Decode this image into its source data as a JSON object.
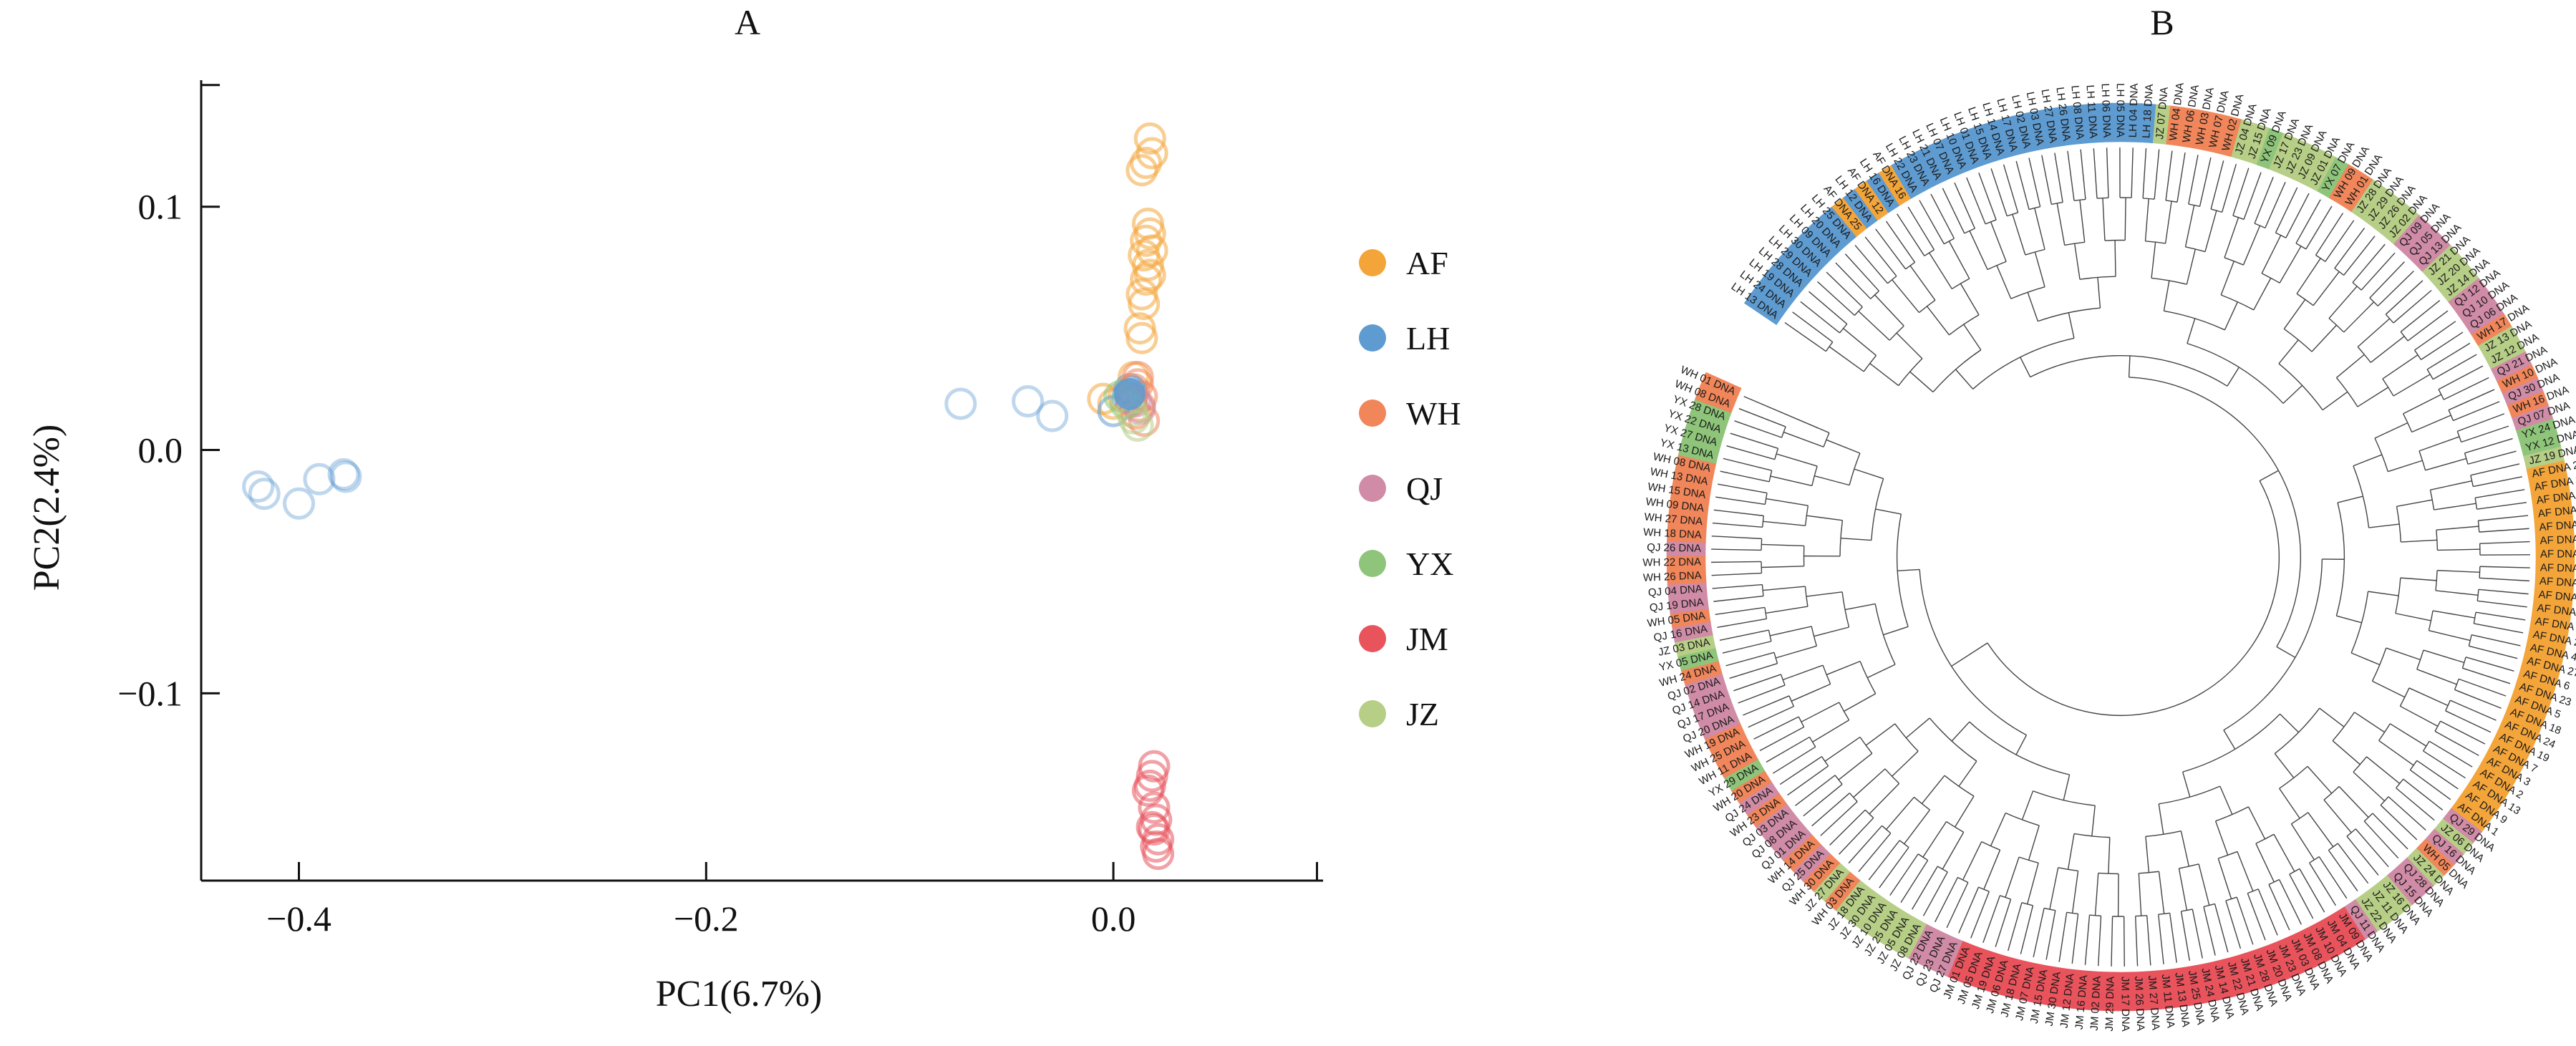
{
  "colors": {
    "AF": "#F4A53A",
    "LH": "#5E9BD1",
    "WH": "#F0865A",
    "QJ": "#D08BA6",
    "YX": "#8EC57A",
    "JM": "#E8535C",
    "JZ": "#B6CE86"
  },
  "chart_data": [
    {
      "type": "scatter",
      "title": "A",
      "xlabel": "PC1(6.7%)",
      "ylabel": "PC2(2.4%)",
      "xlim": [
        -0.448,
        0.103
      ],
      "ylim": [
        -0.177,
        0.152
      ],
      "xticks": [
        {
          "v": -0.4,
          "label": "−0.4"
        },
        {
          "v": -0.2,
          "label": "−0.2"
        },
        {
          "v": 0.0,
          "label": "0.0"
        },
        {
          "v": 0.1,
          "label": ""
        }
      ],
      "yticks": [
        {
          "v": 0.1,
          "label": "0.1"
        },
        {
          "v": 0.0,
          "label": "0.0"
        },
        {
          "v": -0.1,
          "label": "−0.1"
        },
        {
          "v": 0.15,
          "label": ""
        }
      ],
      "legend_position": "right",
      "series": [
        {
          "name": "AF",
          "points": [
            [
              0.018,
              0.128
            ],
            [
              0.019,
              0.122
            ],
            [
              0.016,
              0.118
            ],
            [
              0.014,
              0.115
            ],
            [
              0.017,
              0.093
            ],
            [
              0.018,
              0.089
            ],
            [
              0.016,
              0.086
            ],
            [
              0.019,
              0.082
            ],
            [
              0.015,
              0.08
            ],
            [
              0.017,
              0.076
            ],
            [
              0.018,
              0.072
            ],
            [
              0.016,
              0.07
            ],
            [
              0.014,
              0.064
            ],
            [
              0.015,
              0.06
            ],
            [
              0.013,
              0.05
            ],
            [
              0.014,
              0.046
            ],
            [
              -0.005,
              0.021
            ],
            [
              0.0,
              0.019
            ],
            [
              0.01,
              0.03
            ],
            [
              0.005,
              0.022
            ]
          ]
        },
        {
          "name": "LH",
          "points": [
            [
              -0.42,
              -0.015
            ],
            [
              -0.417,
              -0.018
            ],
            [
              -0.4,
              -0.022
            ],
            [
              -0.39,
              -0.012
            ],
            [
              -0.378,
              -0.01
            ],
            [
              -0.377,
              -0.011
            ],
            [
              -0.075,
              0.019
            ],
            [
              -0.042,
              0.02
            ],
            [
              -0.03,
              0.014
            ],
            [
              0.0,
              0.016
            ],
            [
              0.008,
              0.023
            ],
            [
              0.009,
              0.024
            ],
            [
              0.007,
              0.022
            ],
            [
              0.009,
              0.021
            ],
            [
              0.008,
              0.025
            ]
          ]
        },
        {
          "name": "WH",
          "points": [
            [
              0.012,
              0.03
            ],
            [
              0.01,
              0.025
            ],
            [
              0.014,
              0.022
            ],
            [
              0.013,
              0.018
            ],
            [
              0.011,
              0.015
            ],
            [
              0.015,
              0.012
            ],
            [
              0.009,
              0.02
            ],
            [
              0.012,
              0.027
            ]
          ]
        },
        {
          "name": "QJ",
          "points": [
            [
              0.011,
              0.02
            ],
            [
              0.013,
              0.017
            ]
          ]
        },
        {
          "name": "YX",
          "points": [
            [
              0.003,
              0.022
            ],
            [
              0.006,
              0.019
            ]
          ]
        },
        {
          "name": "JM",
          "points": [
            [
              0.02,
              -0.13
            ],
            [
              0.019,
              -0.134
            ],
            [
              0.018,
              -0.138
            ],
            [
              0.017,
              -0.14
            ],
            [
              0.02,
              -0.147
            ],
            [
              0.021,
              -0.152
            ],
            [
              0.02,
              -0.156
            ],
            [
              0.022,
              -0.16
            ],
            [
              0.021,
              -0.163
            ],
            [
              0.022,
              -0.166
            ],
            [
              0.019,
              -0.155
            ]
          ]
        },
        {
          "name": "JZ",
          "points": [
            [
              0.012,
              0.01
            ],
            [
              0.01,
              0.013
            ],
            [
              0.009,
              0.016
            ]
          ]
        }
      ]
    },
    {
      "type": "circular-tree",
      "title": "B",
      "leaves": [
        "LH 13 DNA",
        "LH 24 DNA",
        "LH 19 DNA",
        "LH 28 DNA",
        "LH 29 DNA",
        "LH 30 DNA",
        "LH 09 DNA",
        "LH 20 DNA",
        "LH 25 DNA",
        "AF DNA 25",
        "LH 12 DNA",
        "AF DNA 12",
        "LH 16 DNA",
        "AF DNA 16",
        "LH 22 DNA",
        "LH 23 DNA",
        "LH 21 DNA",
        "LH 07 DNA",
        "LH 10 DNA",
        "LH 01 DNA",
        "LH 15 DNA",
        "LH 14 DNA",
        "LH 17 DNA",
        "LH 02 DNA",
        "LH 03 DNA",
        "LH 27 DNA",
        "LH 26 DNA",
        "LH 08 DNA",
        "LH 11 DNA",
        "LH 06 DNA",
        "LH 05 DNA",
        "LH 04 DNA",
        "LH 18 DNA",
        "JZ 07 DNA",
        "WH 04 DNA",
        "WH 06 DNA",
        "WH 03 DNA",
        "WH 07 DNA",
        "WH 02 DNA",
        "JZ 04 DNA",
        "JZ 15 DNA",
        "YX 09 DNA",
        "JZ 17 DNA",
        "JZ 23 DNA",
        "JZ 09 DNA",
        "JZ 01 DNA",
        "YX 07 DNA",
        "WH 09 DNA",
        "WH 01 DNA",
        "JZ 28 DNA",
        "JZ 29 DNA",
        "JZ 26 DNA",
        "JZ 02 DNA",
        "QJ 09 DNA",
        "QJ 05 DNA",
        "QJ 13 DNA",
        "JZ 21 DNA",
        "JZ 20 DNA",
        "JZ 14 DNA",
        "QJ 12 DNA",
        "QJ 10 DNA",
        "QJ 06 DNA",
        "WH 17 DNA",
        "JZ 13 DNA",
        "JZ 12 DNA",
        "QJ 21 DNA",
        "WH 10 DNA",
        "QJ 30 DNA",
        "WH 16 DNA",
        "QJ 07 DNA",
        "YX 24 DNA",
        "YX 12 DNA",
        "JZ 19 DNA",
        "AF DNA 26",
        "AF DNA 8",
        "AF DNA 15",
        "AF DNA 20",
        "AF DNA 28",
        "AF DNA 29",
        "AF DNA 21",
        "AF DNA 11",
        "AF DNA 14",
        "AF DNA 10",
        "AF DNA 17",
        "AF DNA 30",
        "AF DNA 22",
        "AF DNA 4",
        "AF DNA 27",
        "AF DNA 6",
        "AF DNA 23",
        "AF DNA 5",
        "AF DNA 18",
        "AF DNA 24",
        "AF DNA 19",
        "AF DNA 7",
        "AF DNA 3",
        "AF DNA 2",
        "AF DNA 13",
        "AF DNA 9",
        "AF DNA 1",
        "QJ 29 DNA",
        "JZ 06 DNA",
        "QJ 16 DNA",
        "WH 05 DNA",
        "JZ 24 DNA",
        "QJ 28 DNA",
        "QJ 15 DNA",
        "JZ 16 DNA",
        "JZ 11 DNA",
        "JZ 22 DNA",
        "QJ 11 DNA",
        "JM 09 DNA",
        "JM 04 DNA",
        "JM 10 DNA",
        "JM 08 DNA",
        "JM 03 DNA",
        "JM 23 DNA",
        "JM 20 DNA",
        "JM 28 DNA",
        "JM 21 DNA",
        "JM 22 DNA",
        "JM 14 DNA",
        "JM 24 DNA",
        "JM 25 DNA",
        "JM 13 DNA",
        "JM 11 DNA",
        "JM 27 DNA",
        "JM 26 DNA",
        "JM 17 DNA",
        "JM 29 DNA",
        "JM 02 DNA",
        "JM 16 DNA",
        "JM 12 DNA",
        "JM 30 DNA",
        "JM 15 DNA",
        "JM 07 DNA",
        "JM 18 DNA",
        "JM 06 DNA",
        "JM 19 DNA",
        "JM 05 DNA",
        "JM 01 DNA",
        "QJ 27 DNA",
        "QJ 23 DNA",
        "QJ 22 DNA",
        "JZ 08 DNA",
        "JZ 05 DNA",
        "JZ 25 DNA",
        "JZ 10 DNA",
        "JZ 30 DNA",
        "JZ 18 DNA",
        "WH 03 DNA",
        "JZ 27 DNA",
        "WH 30 DNA",
        "QJ 25 DNA",
        "WH 14 DNA",
        "QJ 01 DNA",
        "QJ 08 DNA",
        "QJ 03 DNA",
        "WH 23 DNA",
        "QJ 24 DNA",
        "WH 20 DNA",
        "YX 29 DNA",
        "WH 11 DNA",
        "WH 25 DNA",
        "WH 19 DNA",
        "QJ 20 DNA",
        "QJ 17 DNA",
        "QJ 14 DNA",
        "QJ 02 DNA",
        "WH 24 DNA",
        "YX 05 DNA",
        "JZ 03 DNA",
        "QJ 16 DNA",
        "WH 05 DNA",
        "QJ 19 DNA",
        "QJ 04 DNA",
        "WH 26 DNA",
        "WH 22 DNA",
        "QJ 26 DNA",
        "WH 18 DNA",
        "WH 27 DNA",
        "WH 09 DNA",
        "WH 15 DNA",
        "WH 13 DNA",
        "WH 08 DNA",
        "YX 13 DNA",
        "YX 27 DNA",
        "YX 22 DNA",
        "YX 28 DNA",
        "WH 08 DNA",
        "WH 01 DNA"
      ]
    }
  ]
}
